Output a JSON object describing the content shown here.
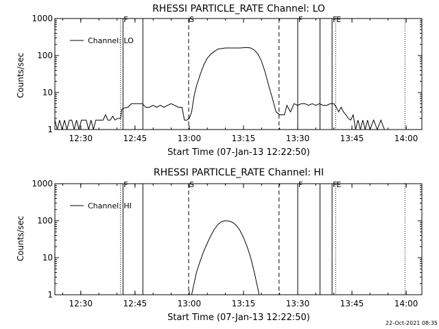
{
  "footer": {
    "timestamp": "22-Oct-2021 08:35"
  },
  "chart_data": [
    {
      "type": "line",
      "title": "RHESSI PARTICLE_RATE Channel: LO",
      "xlabel": "Start Time (07-Jan-13 12:22:50)",
      "ylabel": "Counts/sec",
      "yscale": "log",
      "ylim": [
        1,
        1000
      ],
      "xlim": [
        "12:22:50",
        "14:04:20"
      ],
      "x_ticks": [
        "12:30",
        "12:45",
        "13:00",
        "13:15",
        "13:30",
        "13:45",
        "14:00"
      ],
      "y_ticks": [
        "1",
        "10",
        "100",
        "1000"
      ],
      "legend": {
        "entries": [
          "Channel: LO"
        ],
        "placement": "top-left"
      },
      "grid": false,
      "markers": [
        {
          "label": "F",
          "time": "12:41:40",
          "style": "solid"
        },
        {
          "label": "",
          "time": "12:41:00",
          "style": "dotted"
        },
        {
          "label": "",
          "time": "12:47:10",
          "style": "solid"
        },
        {
          "label": "S",
          "time": "12:59:50",
          "style": "dashed"
        },
        {
          "label": "",
          "time": "13:24:50",
          "style": "dashed"
        },
        {
          "label": "F",
          "time": "13:30:00",
          "style": "solid"
        },
        {
          "label": "",
          "time": "13:36:10",
          "style": "solid"
        },
        {
          "label": "F",
          "time": "13:39:30",
          "style": "solid"
        },
        {
          "label": "E",
          "time": "13:40:30",
          "style": "dotted"
        },
        {
          "label": "",
          "time": "13:59:40",
          "style": "dotted"
        }
      ],
      "series": [
        {
          "name": "Channel: LO",
          "x": [
            "12:22:50",
            "12:23:30",
            "12:24:10",
            "12:24:50",
            "12:25:30",
            "12:26:10",
            "12:26:50",
            "12:27:30",
            "12:28:10",
            "12:28:50",
            "12:29:30",
            "12:30:10",
            "12:30:50",
            "12:31:30",
            "12:32:10",
            "12:32:50",
            "12:33:30",
            "12:34:10",
            "12:34:50",
            "12:35:30",
            "12:36:10",
            "12:36:50",
            "12:37:30",
            "12:38:10",
            "12:38:50",
            "12:39:30",
            "12:40:10",
            "12:41:00",
            "12:41:20",
            "12:42:00",
            "12:43:00",
            "12:44:00",
            "12:45:00",
            "12:46:00",
            "12:47:00",
            "12:48:00",
            "12:49:00",
            "12:50:00",
            "12:51:00",
            "12:52:00",
            "12:53:00",
            "12:54:00",
            "12:55:00",
            "12:56:00",
            "12:57:00",
            "12:58:00",
            "12:58:40",
            "12:59:20",
            "13:00:00",
            "13:00:40",
            "13:01:20",
            "13:02:00",
            "13:03:00",
            "13:04:00",
            "13:05:00",
            "13:06:00",
            "13:07:00",
            "13:08:00",
            "13:09:00",
            "13:10:00",
            "13:12:00",
            "13:14:00",
            "13:16:00",
            "13:17:00",
            "13:18:00",
            "13:19:00",
            "13:20:00",
            "13:21:00",
            "13:22:00",
            "13:23:00",
            "13:24:00",
            "13:25:00",
            "13:25:40",
            "13:26:20",
            "13:27:00",
            "13:28:00",
            "13:29:00",
            "13:30:00",
            "13:31:00",
            "13:32:00",
            "13:33:00",
            "13:34:00",
            "13:35:00",
            "13:36:00",
            "13:37:00",
            "13:38:00",
            "13:39:00",
            "13:40:00",
            "13:40:40",
            "13:41:20",
            "13:42:00",
            "13:42:40",
            "13:43:20",
            "13:44:00",
            "13:44:40",
            "13:45:20",
            "13:46:00",
            "13:46:40",
            "13:47:20",
            "13:48:00",
            "13:48:40",
            "13:49:20",
            "13:50:00",
            "13:51:00",
            "13:52:00",
            "13:53:00",
            "13:54:00",
            "13:55:00",
            "13:56:00",
            "13:57:00",
            "13:58:00"
          ],
          "y": [
            1.8,
            1,
            1.8,
            1,
            1.8,
            1,
            1.8,
            1.8,
            1,
            1.8,
            1,
            1.8,
            1.8,
            1.8,
            1,
            1.8,
            1,
            1.8,
            1.8,
            1.8,
            1.8,
            2.5,
            1.8,
            1.8,
            2.3,
            1.8,
            2,
            2,
            3.5,
            3.8,
            4,
            5,
            5,
            5,
            5,
            4,
            4,
            4.5,
            4,
            4.5,
            4,
            4.5,
            5,
            4.5,
            4,
            4,
            1.8,
            1.8,
            2,
            3,
            8,
            15,
            30,
            55,
            85,
            110,
            130,
            150,
            155,
            160,
            160,
            160,
            165,
            160,
            140,
            110,
            70,
            35,
            15,
            7,
            3,
            2.5,
            2.5,
            2.5,
            4.5,
            3,
            5,
            4.5,
            5,
            5,
            4.5,
            5,
            4.5,
            5,
            4.5,
            4.5,
            5,
            5,
            4,
            3,
            4,
            3,
            2.5,
            2,
            1.8,
            2.5,
            1,
            1.8,
            1,
            1.8,
            1,
            1.8,
            1,
            1.8,
            1,
            1.8,
            1,
            1,
            1,
            1,
            1
          ]
        }
      ]
    },
    {
      "type": "line",
      "title": "RHESSI PARTICLE_RATE Channel: HI",
      "xlabel": "Start Time (07-Jan-13 12:22:50)",
      "ylabel": "Counts/sec",
      "yscale": "log",
      "ylim": [
        1,
        1000
      ],
      "xlim": [
        "12:22:50",
        "14:04:20"
      ],
      "x_ticks": [
        "12:30",
        "12:45",
        "13:00",
        "13:15",
        "13:30",
        "13:45",
        "14:00"
      ],
      "y_ticks": [
        "1",
        "10",
        "100",
        "1000"
      ],
      "legend": {
        "entries": [
          "Channel: HI"
        ],
        "placement": "top-left"
      },
      "grid": false,
      "markers": [
        {
          "label": "F",
          "time": "12:41:40",
          "style": "solid"
        },
        {
          "label": "",
          "time": "12:41:00",
          "style": "dotted"
        },
        {
          "label": "",
          "time": "12:47:10",
          "style": "solid"
        },
        {
          "label": "S",
          "time": "12:59:50",
          "style": "dashed"
        },
        {
          "label": "",
          "time": "13:24:50",
          "style": "dashed"
        },
        {
          "label": "F",
          "time": "13:30:00",
          "style": "solid"
        },
        {
          "label": "",
          "time": "13:36:10",
          "style": "solid"
        },
        {
          "label": "F",
          "time": "13:39:30",
          "style": "solid"
        },
        {
          "label": "E",
          "time": "13:40:30",
          "style": "dotted"
        },
        {
          "label": "",
          "time": "13:59:40",
          "style": "dotted"
        }
      ],
      "series": [
        {
          "name": "Channel: HI",
          "x": [
            "13:00:40",
            "13:01:20",
            "13:02:00",
            "13:03:00",
            "13:04:00",
            "13:05:00",
            "13:06:00",
            "13:07:00",
            "13:08:00",
            "13:09:00",
            "13:10:00",
            "13:11:00",
            "13:12:00",
            "13:13:00",
            "13:14:00",
            "13:15:00",
            "13:16:00",
            "13:17:00",
            "13:18:00",
            "13:18:40",
            "13:19:20"
          ],
          "y": [
            1,
            2,
            4,
            8,
            15,
            25,
            40,
            60,
            80,
            95,
            100,
            98,
            90,
            75,
            55,
            35,
            20,
            10,
            4,
            2,
            1
          ]
        }
      ]
    }
  ]
}
